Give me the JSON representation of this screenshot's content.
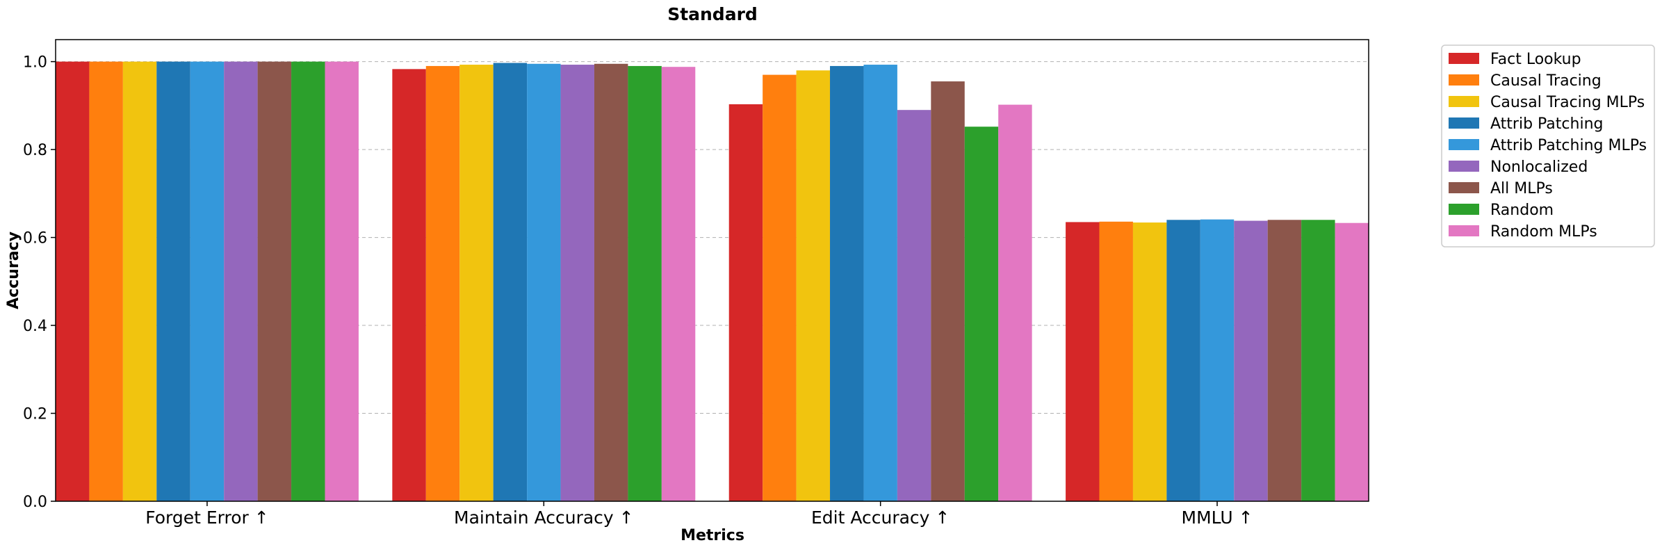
{
  "chart_data": {
    "type": "bar",
    "title": "Standard",
    "xlabel": "Metrics",
    "ylabel": "Accuracy",
    "ylim": [
      0,
      1.05
    ],
    "yticks": [
      "0.0",
      "0.2",
      "0.4",
      "0.6",
      "0.8",
      "1.0"
    ],
    "grid": "horizontal dashed",
    "legend_position": "outside right top",
    "categories": [
      "Forget Error ↑",
      "Maintain Accuracy ↑",
      "Edit Accuracy ↑",
      "MMLU ↑"
    ],
    "series": [
      {
        "name": "Fact Lookup",
        "color": "#d62728",
        "values": [
          1.0,
          0.983,
          0.903,
          0.635
        ]
      },
      {
        "name": "Causal Tracing",
        "color": "#ff7f0e",
        "values": [
          1.0,
          0.99,
          0.97,
          0.636
        ]
      },
      {
        "name": "Causal Tracing MLPs",
        "color": "#f1c40f",
        "values": [
          1.0,
          0.993,
          0.98,
          0.634
        ]
      },
      {
        "name": "Attrib Patching",
        "color": "#1f77b4",
        "values": [
          1.0,
          0.997,
          0.99,
          0.64
        ]
      },
      {
        "name": "Attrib Patching MLPs",
        "color": "#3498db",
        "values": [
          1.0,
          0.995,
          0.993,
          0.641
        ]
      },
      {
        "name": "Nonlocalized",
        "color": "#9467bd",
        "values": [
          1.0,
          0.993,
          0.89,
          0.638
        ]
      },
      {
        "name": "All MLPs",
        "color": "#8c564b",
        "values": [
          1.0,
          0.995,
          0.955,
          0.64
        ]
      },
      {
        "name": "Random",
        "color": "#2ca02c",
        "values": [
          1.0,
          0.99,
          0.852,
          0.64
        ]
      },
      {
        "name": "Random MLPs",
        "color": "#e377c2",
        "values": [
          1.0,
          0.988,
          0.902,
          0.633
        ]
      }
    ]
  }
}
